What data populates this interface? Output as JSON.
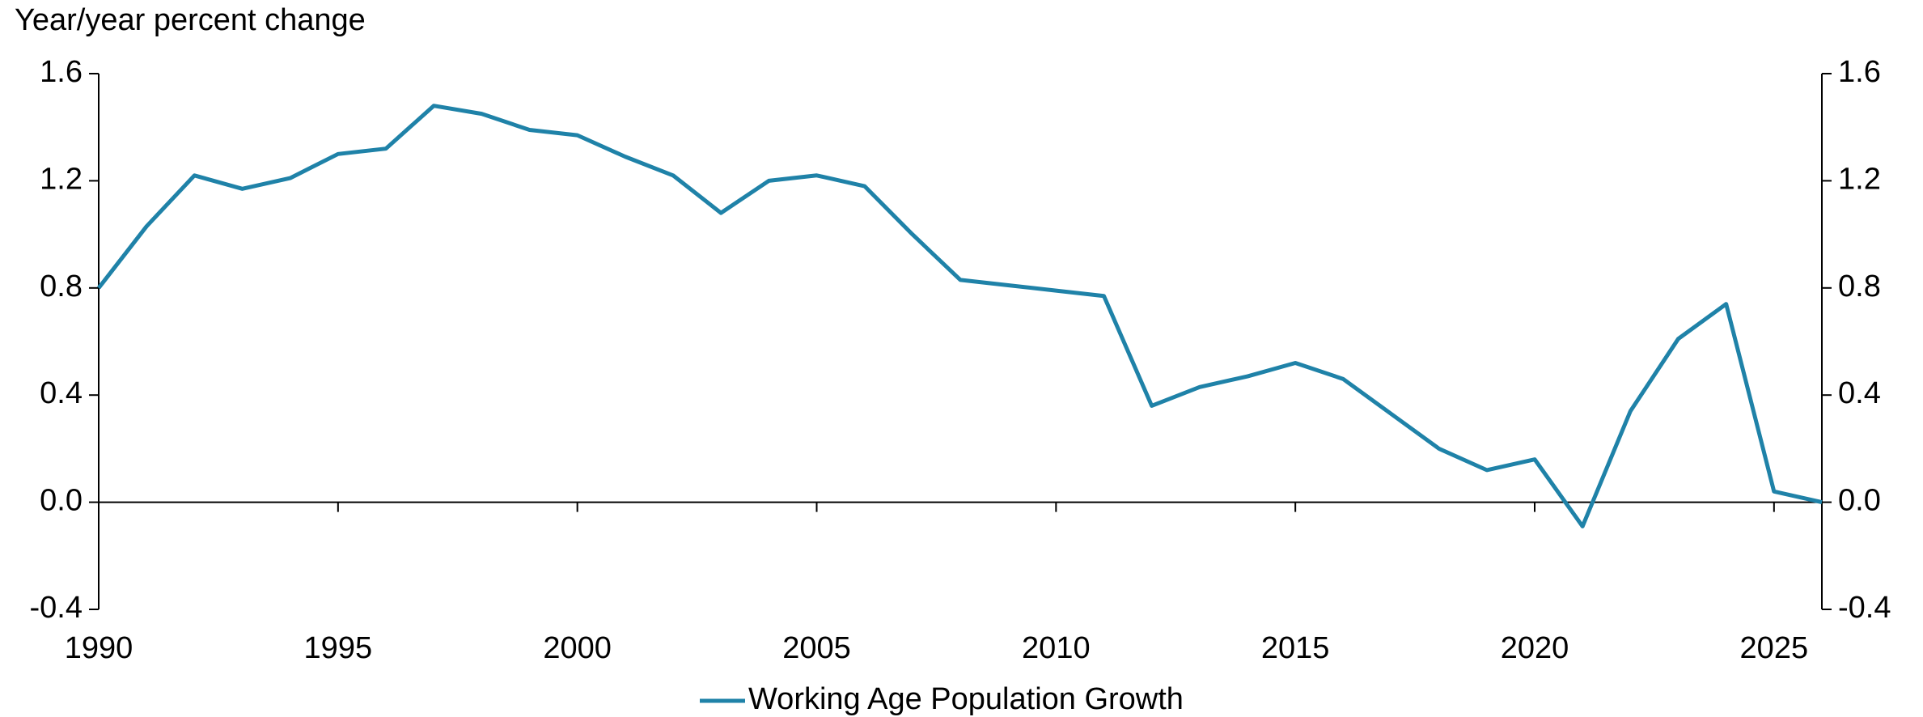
{
  "chart_data": {
    "type": "line",
    "y_label": "Year/year percent change",
    "x": [
      1990,
      1991,
      1992,
      1993,
      1994,
      1995,
      1996,
      1997,
      1998,
      1999,
      2000,
      2001,
      2002,
      2003,
      2004,
      2005,
      2006,
      2007,
      2008,
      2009,
      2010,
      2011,
      2012,
      2013,
      2014,
      2015,
      2016,
      2017,
      2018,
      2019,
      2020,
      2021,
      2022,
      2023,
      2024,
      2025,
      2026
    ],
    "series": [
      {
        "name": "Working Age Population Growth",
        "color": "#1f82a8",
        "values": [
          0.8,
          1.03,
          1.22,
          1.17,
          1.21,
          1.3,
          1.32,
          1.48,
          1.45,
          1.39,
          1.37,
          1.29,
          1.22,
          1.08,
          1.2,
          1.22,
          1.18,
          1.0,
          0.83,
          0.81,
          0.79,
          0.77,
          0.36,
          0.43,
          0.47,
          0.52,
          0.46,
          0.33,
          0.2,
          0.12,
          0.16,
          -0.09,
          0.34,
          0.61,
          0.74,
          0.04,
          0.0
        ]
      }
    ],
    "xlim": [
      1990,
      2026
    ],
    "xticks": [
      1990,
      1995,
      2000,
      2005,
      2010,
      2015,
      2020,
      2025
    ],
    "ylim": [
      -0.4,
      1.6
    ],
    "yticks": [
      -0.4,
      {
        "value": 0,
        "label": "0.0"
      },
      0.4,
      0.8,
      1.2,
      1.6
    ],
    "y2lim": [
      -0.4,
      1.6
    ],
    "y2ticks": [
      -0.4,
      {
        "value": 0,
        "label": "0.0"
      },
      0.4,
      0.8,
      1.2,
      1.6
    ],
    "legend": "bottom"
  }
}
